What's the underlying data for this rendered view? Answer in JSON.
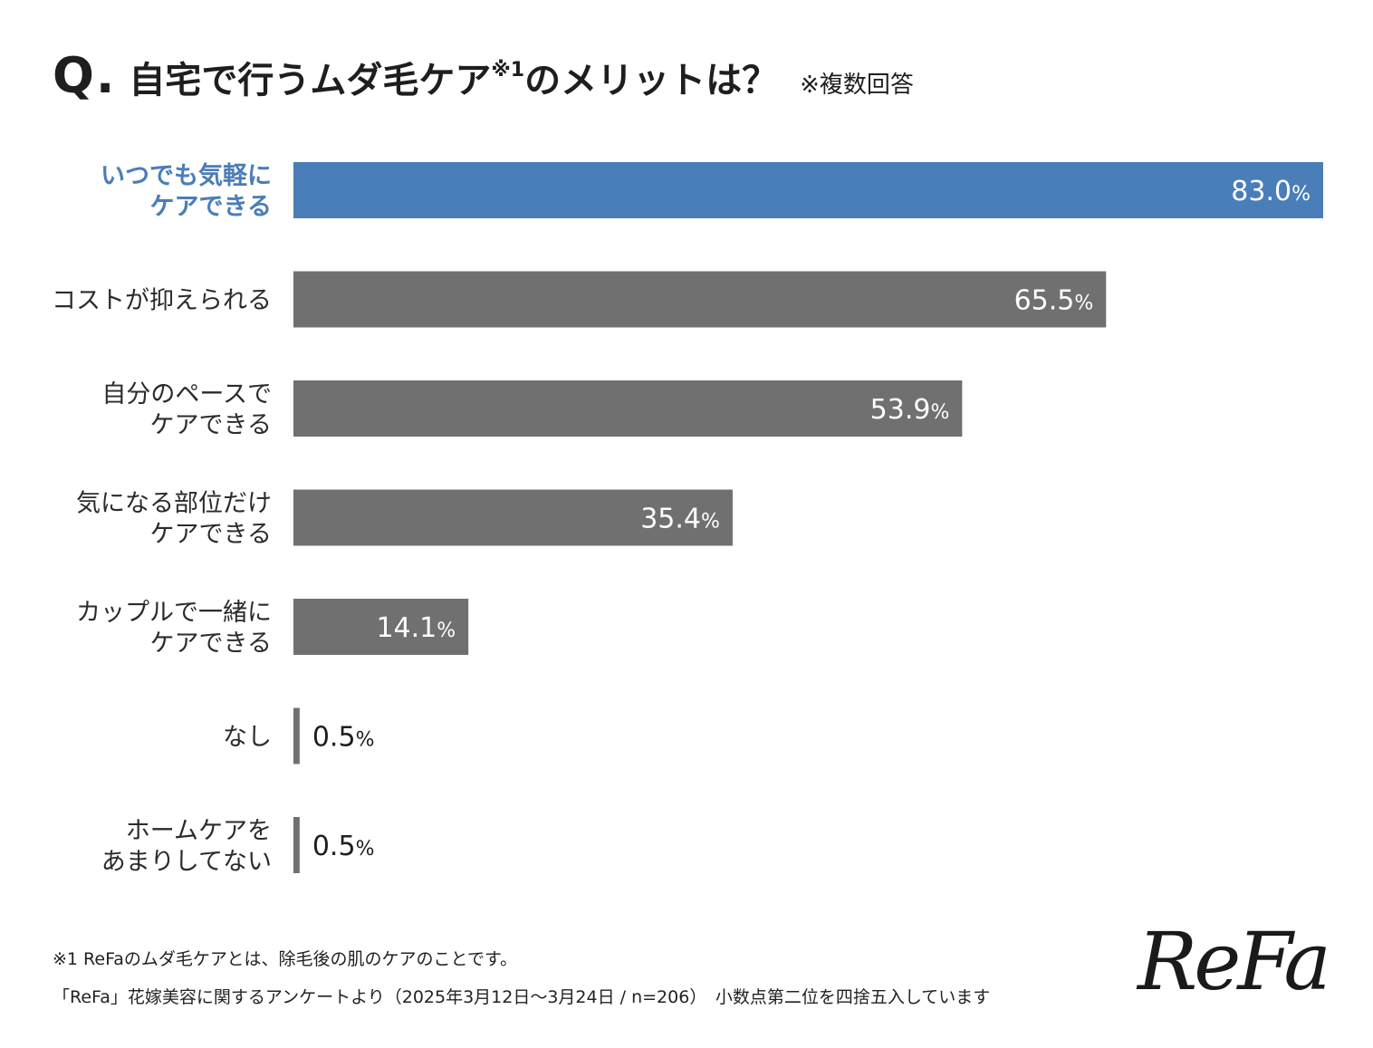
{
  "question": {
    "mark": "Q.",
    "text": "自宅で行うムダ毛ケア",
    "sup": "※1",
    "text_end": "のメリットは？",
    "note": "※複数回答"
  },
  "chart_data": {
    "type": "bar",
    "orientation": "horizontal",
    "categories": [
      [
        "いつでも気軽に",
        "ケアできる"
      ],
      [
        "コストが抑えられる"
      ],
      [
        "自分のペースで",
        "ケアできる"
      ],
      [
        "気になる部位だけ",
        "ケアできる"
      ],
      [
        "カップルで一緒に",
        "ケアできる"
      ],
      [
        "なし"
      ],
      [
        "ホームケアを",
        "あまりしてない"
      ]
    ],
    "values": [
      83.0,
      65.5,
      53.9,
      35.4,
      14.1,
      0.5,
      0.5
    ],
    "value_labels": [
      "83.0",
      "65.5",
      "53.9",
      "35.4",
      "14.1",
      "0.5",
      "0.5"
    ],
    "unit": "%",
    "xlim": [
      0,
      100
    ],
    "highlight_index": 0,
    "colors": {
      "highlight": "#4a7eb8",
      "bar": "#707070",
      "highlight_label": "#4a7eb8",
      "label": "#2b2b2b",
      "value_inside": "#ffffff",
      "value_outside": "#1e1e1e"
    }
  },
  "footnotes": {
    "line1": "※1 ReFaのムダ毛ケアとは、除毛後の肌のケアのことです。",
    "line2": "「ReFa」花嫁美容に関するアンケートより（2025年3月12日〜3月24日 / n=206）　小数点第二位を四捨五入しています"
  },
  "logo": "ReFa"
}
